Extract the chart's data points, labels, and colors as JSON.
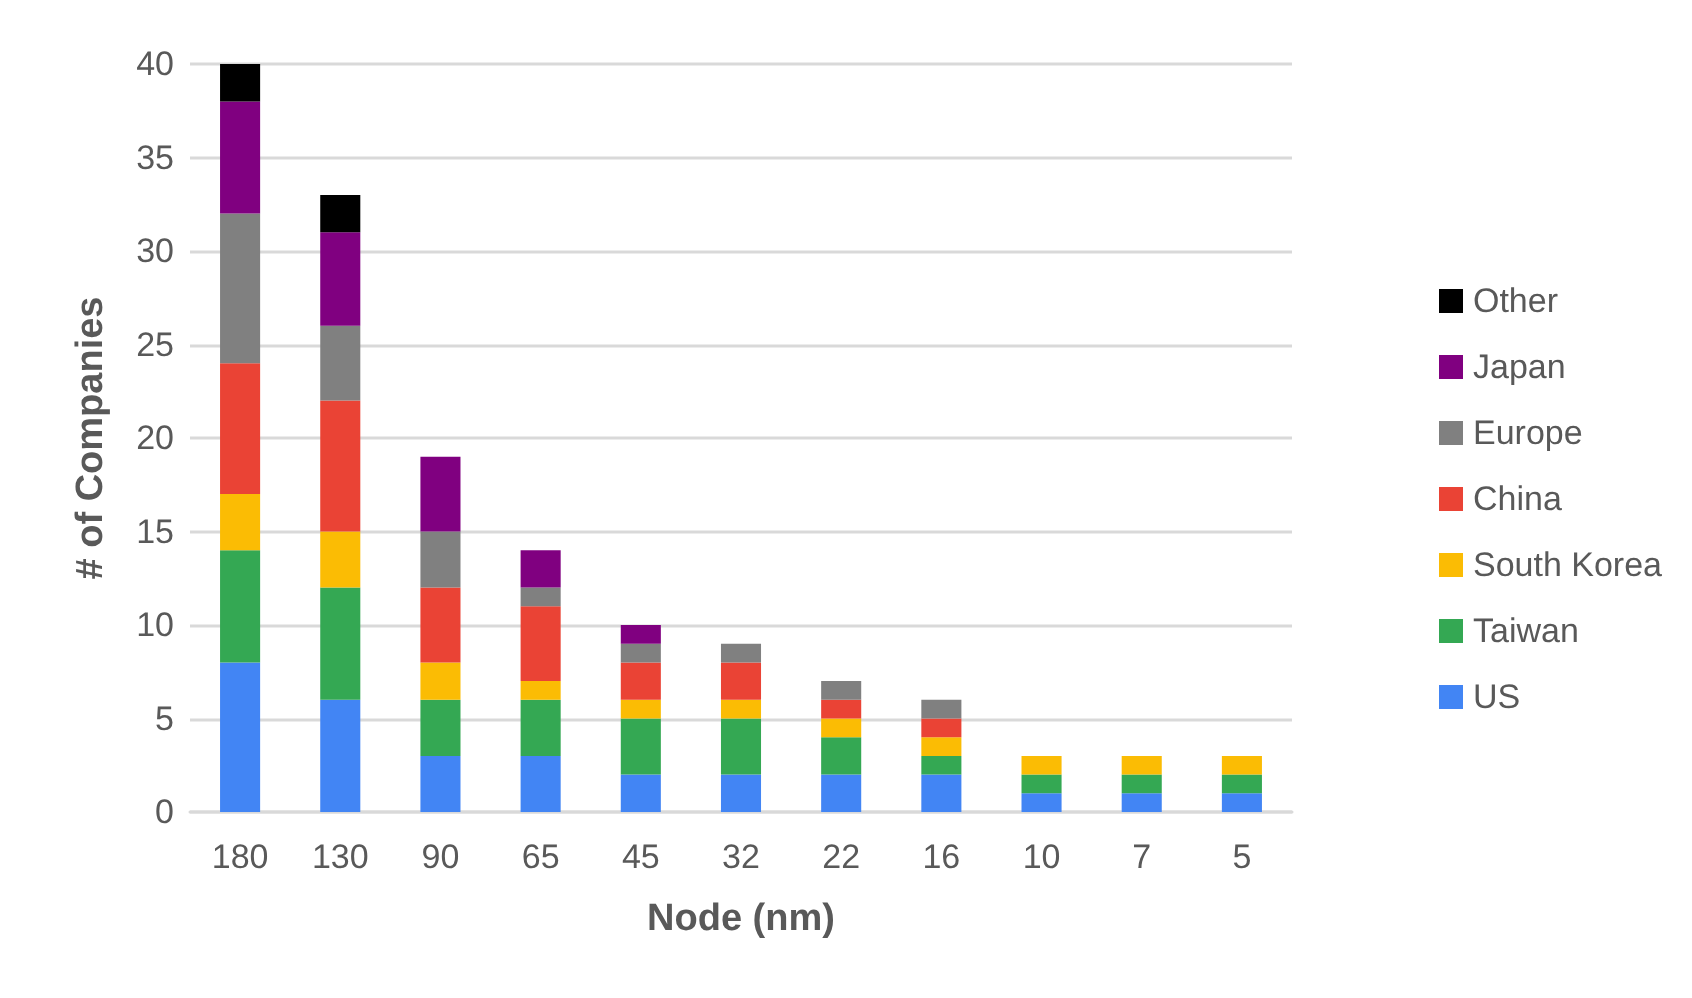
{
  "chart_data": {
    "type": "bar",
    "stacked": true,
    "xlabel": "Node (nm)",
    "ylabel": "# of Companies",
    "categories": [
      "180",
      "130",
      "90",
      "65",
      "45",
      "32",
      "22",
      "16",
      "10",
      "7",
      "5"
    ],
    "series": [
      {
        "name": "US",
        "color": "#4285f4",
        "values": [
          8,
          6,
          3,
          3,
          2,
          2,
          2,
          2,
          1,
          1,
          1
        ]
      },
      {
        "name": "Taiwan",
        "color": "#34a853",
        "values": [
          6,
          6,
          3,
          3,
          3,
          3,
          2,
          1,
          1,
          1,
          1
        ]
      },
      {
        "name": "South Korea",
        "color": "#fbbc04",
        "values": [
          3,
          3,
          2,
          1,
          1,
          1,
          1,
          1,
          1,
          1,
          1
        ]
      },
      {
        "name": "China",
        "color": "#ea4335",
        "values": [
          7,
          7,
          4,
          4,
          2,
          2,
          1,
          1,
          0,
          0,
          0
        ]
      },
      {
        "name": "Europe",
        "color": "#808080",
        "values": [
          8,
          4,
          3,
          1,
          1,
          1,
          1,
          1,
          0,
          0,
          0
        ]
      },
      {
        "name": "Japan",
        "color": "#800080",
        "values": [
          6,
          5,
          4,
          2,
          1,
          0,
          0,
          0,
          0,
          0,
          0
        ]
      },
      {
        "name": "Other",
        "color": "#000000",
        "values": [
          2,
          2,
          0,
          0,
          0,
          0,
          0,
          0,
          0,
          0,
          0
        ]
      }
    ],
    "ylim": [
      0,
      40
    ],
    "yticks": [
      0,
      5,
      10,
      15,
      20,
      25,
      30,
      35,
      40
    ],
    "grid": "y",
    "legend": "right"
  }
}
